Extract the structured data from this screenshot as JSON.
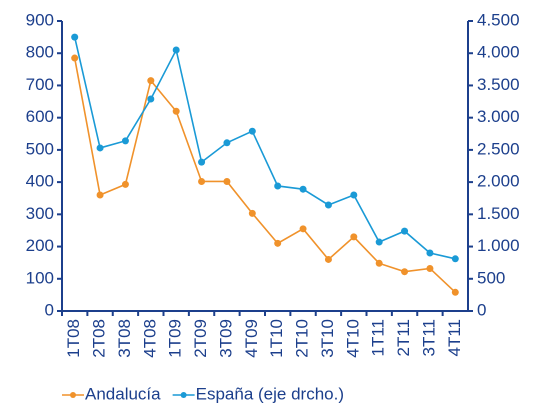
{
  "chart_data": {
    "type": "line",
    "categories": [
      "1T08",
      "2T08",
      "3T08",
      "4T08",
      "1T09",
      "2T09",
      "3T09",
      "4T09",
      "1T10",
      "2T10",
      "3T10",
      "4T10",
      "1T11",
      "2T11",
      "3T11",
      "4T11"
    ],
    "series": [
      {
        "name": "Andalucía",
        "color": "#f0922b",
        "values": [
          785,
          360,
          393,
          715,
          620,
          402,
          402,
          303,
          210,
          255,
          160,
          230,
          148,
          122,
          132,
          58
        ]
      },
      {
        "name": "España (eje drcho.)",
        "color": "#1a9ad6",
        "axis": "y2",
        "values": [
          4250,
          2530,
          2640,
          3290,
          4050,
          2310,
          2610,
          2790,
          1940,
          1890,
          1645,
          1800,
          1070,
          1240,
          900,
          810
        ]
      }
    ],
    "ylim": [
      0,
      900
    ],
    "yticks": [
      0,
      100,
      200,
      300,
      400,
      500,
      600,
      700,
      800,
      900
    ],
    "y2lim": [
      0,
      4500
    ],
    "y2ticks": [
      0,
      500,
      {
        "value": 1000,
        "label": "1.000"
      },
      {
        "value": 1500,
        "label": "1.500"
      },
      {
        "value": 2000,
        "label": "2.000"
      },
      {
        "value": 2500,
        "label": "2.500"
      },
      {
        "value": 3000,
        "label": "3.000"
      },
      {
        "value": 3500,
        "label": "3.500"
      },
      {
        "value": 4000,
        "label": "4.000"
      },
      {
        "value": 4500,
        "label": "4.500"
      }
    ],
    "legend": "bottom"
  }
}
